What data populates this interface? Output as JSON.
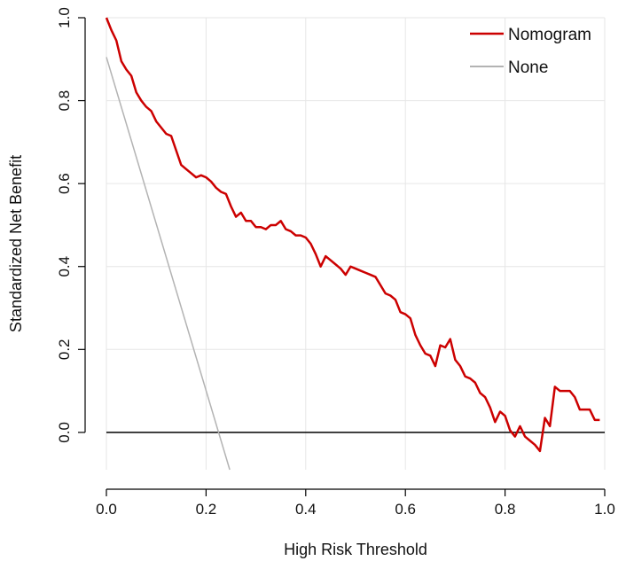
{
  "chart_data": {
    "type": "line",
    "title": "",
    "xlabel": "High Risk Threshold",
    "ylabel": "Standardized Net Benefit",
    "xlim": [
      0.0,
      1.0
    ],
    "ylim": [
      -0.09,
      1.0
    ],
    "xticks": [
      "0.0",
      "0.2",
      "0.4",
      "0.6",
      "0.8",
      "1.0"
    ],
    "yticks": [
      "0.0",
      "0.2",
      "0.4",
      "0.6",
      "0.8",
      "1.0"
    ],
    "grid": true,
    "legend_position": "top-right",
    "series": [
      {
        "name": "Nomogram",
        "color": "#cc0000",
        "x": [
          0.0,
          0.01,
          0.02,
          0.03,
          0.04,
          0.05,
          0.06,
          0.07,
          0.08,
          0.09,
          0.1,
          0.11,
          0.12,
          0.13,
          0.14,
          0.15,
          0.16,
          0.17,
          0.18,
          0.19,
          0.2,
          0.21,
          0.22,
          0.23,
          0.24,
          0.25,
          0.26,
          0.27,
          0.28,
          0.29,
          0.3,
          0.31,
          0.32,
          0.33,
          0.34,
          0.35,
          0.36,
          0.37,
          0.38,
          0.39,
          0.4,
          0.41,
          0.42,
          0.43,
          0.44,
          0.45,
          0.46,
          0.47,
          0.48,
          0.49,
          0.5,
          0.51,
          0.52,
          0.53,
          0.54,
          0.55,
          0.56,
          0.57,
          0.58,
          0.59,
          0.6,
          0.61,
          0.62,
          0.63,
          0.64,
          0.65,
          0.66,
          0.67,
          0.68,
          0.69,
          0.7,
          0.71,
          0.72,
          0.73,
          0.74,
          0.75,
          0.76,
          0.77,
          0.78,
          0.79,
          0.8,
          0.81,
          0.82,
          0.83,
          0.84,
          0.85,
          0.86,
          0.87,
          0.88,
          0.89,
          0.9,
          0.91,
          0.92,
          0.93,
          0.94,
          0.95,
          0.96,
          0.97,
          0.98,
          0.99
        ],
        "y": [
          1.0,
          0.97,
          0.945,
          0.895,
          0.875,
          0.86,
          0.82,
          0.8,
          0.785,
          0.775,
          0.75,
          0.735,
          0.72,
          0.715,
          0.68,
          0.645,
          0.635,
          0.625,
          0.615,
          0.62,
          0.615,
          0.605,
          0.59,
          0.58,
          0.575,
          0.545,
          0.52,
          0.53,
          0.51,
          0.51,
          0.495,
          0.495,
          0.49,
          0.5,
          0.5,
          0.51,
          0.49,
          0.485,
          0.475,
          0.475,
          0.47,
          0.455,
          0.43,
          0.4,
          0.425,
          0.415,
          0.405,
          0.395,
          0.38,
          0.4,
          0.395,
          0.39,
          0.385,
          0.38,
          0.375,
          0.355,
          0.335,
          0.33,
          0.32,
          0.29,
          0.285,
          0.275,
          0.235,
          0.21,
          0.19,
          0.185,
          0.16,
          0.21,
          0.205,
          0.225,
          0.175,
          0.16,
          0.135,
          0.13,
          0.12,
          0.095,
          0.085,
          0.06,
          0.025,
          0.05,
          0.04,
          0.005,
          -0.01,
          0.015,
          -0.01,
          -0.02,
          -0.03,
          -0.045,
          0.035,
          0.015,
          0.11,
          0.1,
          0.1,
          0.1,
          0.085,
          0.055,
          0.055,
          0.055,
          0.03,
          0.03
        ]
      },
      {
        "name": "None",
        "color": "#b3b3b3",
        "x": [
          0.0,
          0.2475
        ],
        "y": [
          0.905,
          -0.09
        ]
      },
      {
        "name": "",
        "color": "#000000",
        "x": [
          0.0,
          1.0
        ],
        "y": [
          0.0,
          0.0
        ]
      }
    ]
  }
}
